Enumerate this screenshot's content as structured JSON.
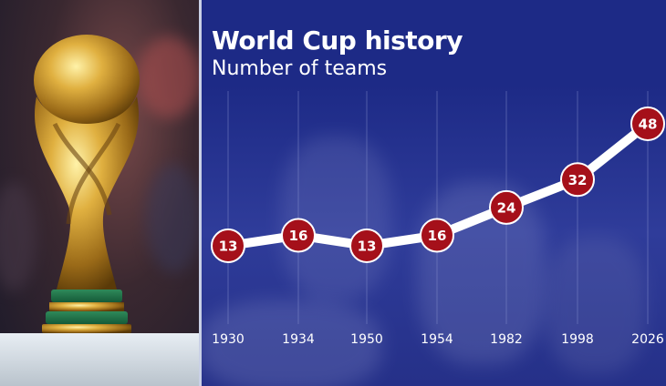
{
  "chart_data": {
    "type": "line",
    "title": "World Cup history",
    "subtitle": "Number of teams",
    "categories": [
      "1930",
      "1934",
      "1950",
      "1954",
      "1982",
      "1998",
      "2026"
    ],
    "values": [
      13,
      16,
      13,
      16,
      24,
      32,
      48
    ],
    "ylim": [
      10,
      50
    ],
    "grid": "vertical",
    "colors": {
      "line": "#ffffff",
      "marker": "#a5101a",
      "marker_border": "#ffffff",
      "background": "#1d2a86"
    }
  }
}
